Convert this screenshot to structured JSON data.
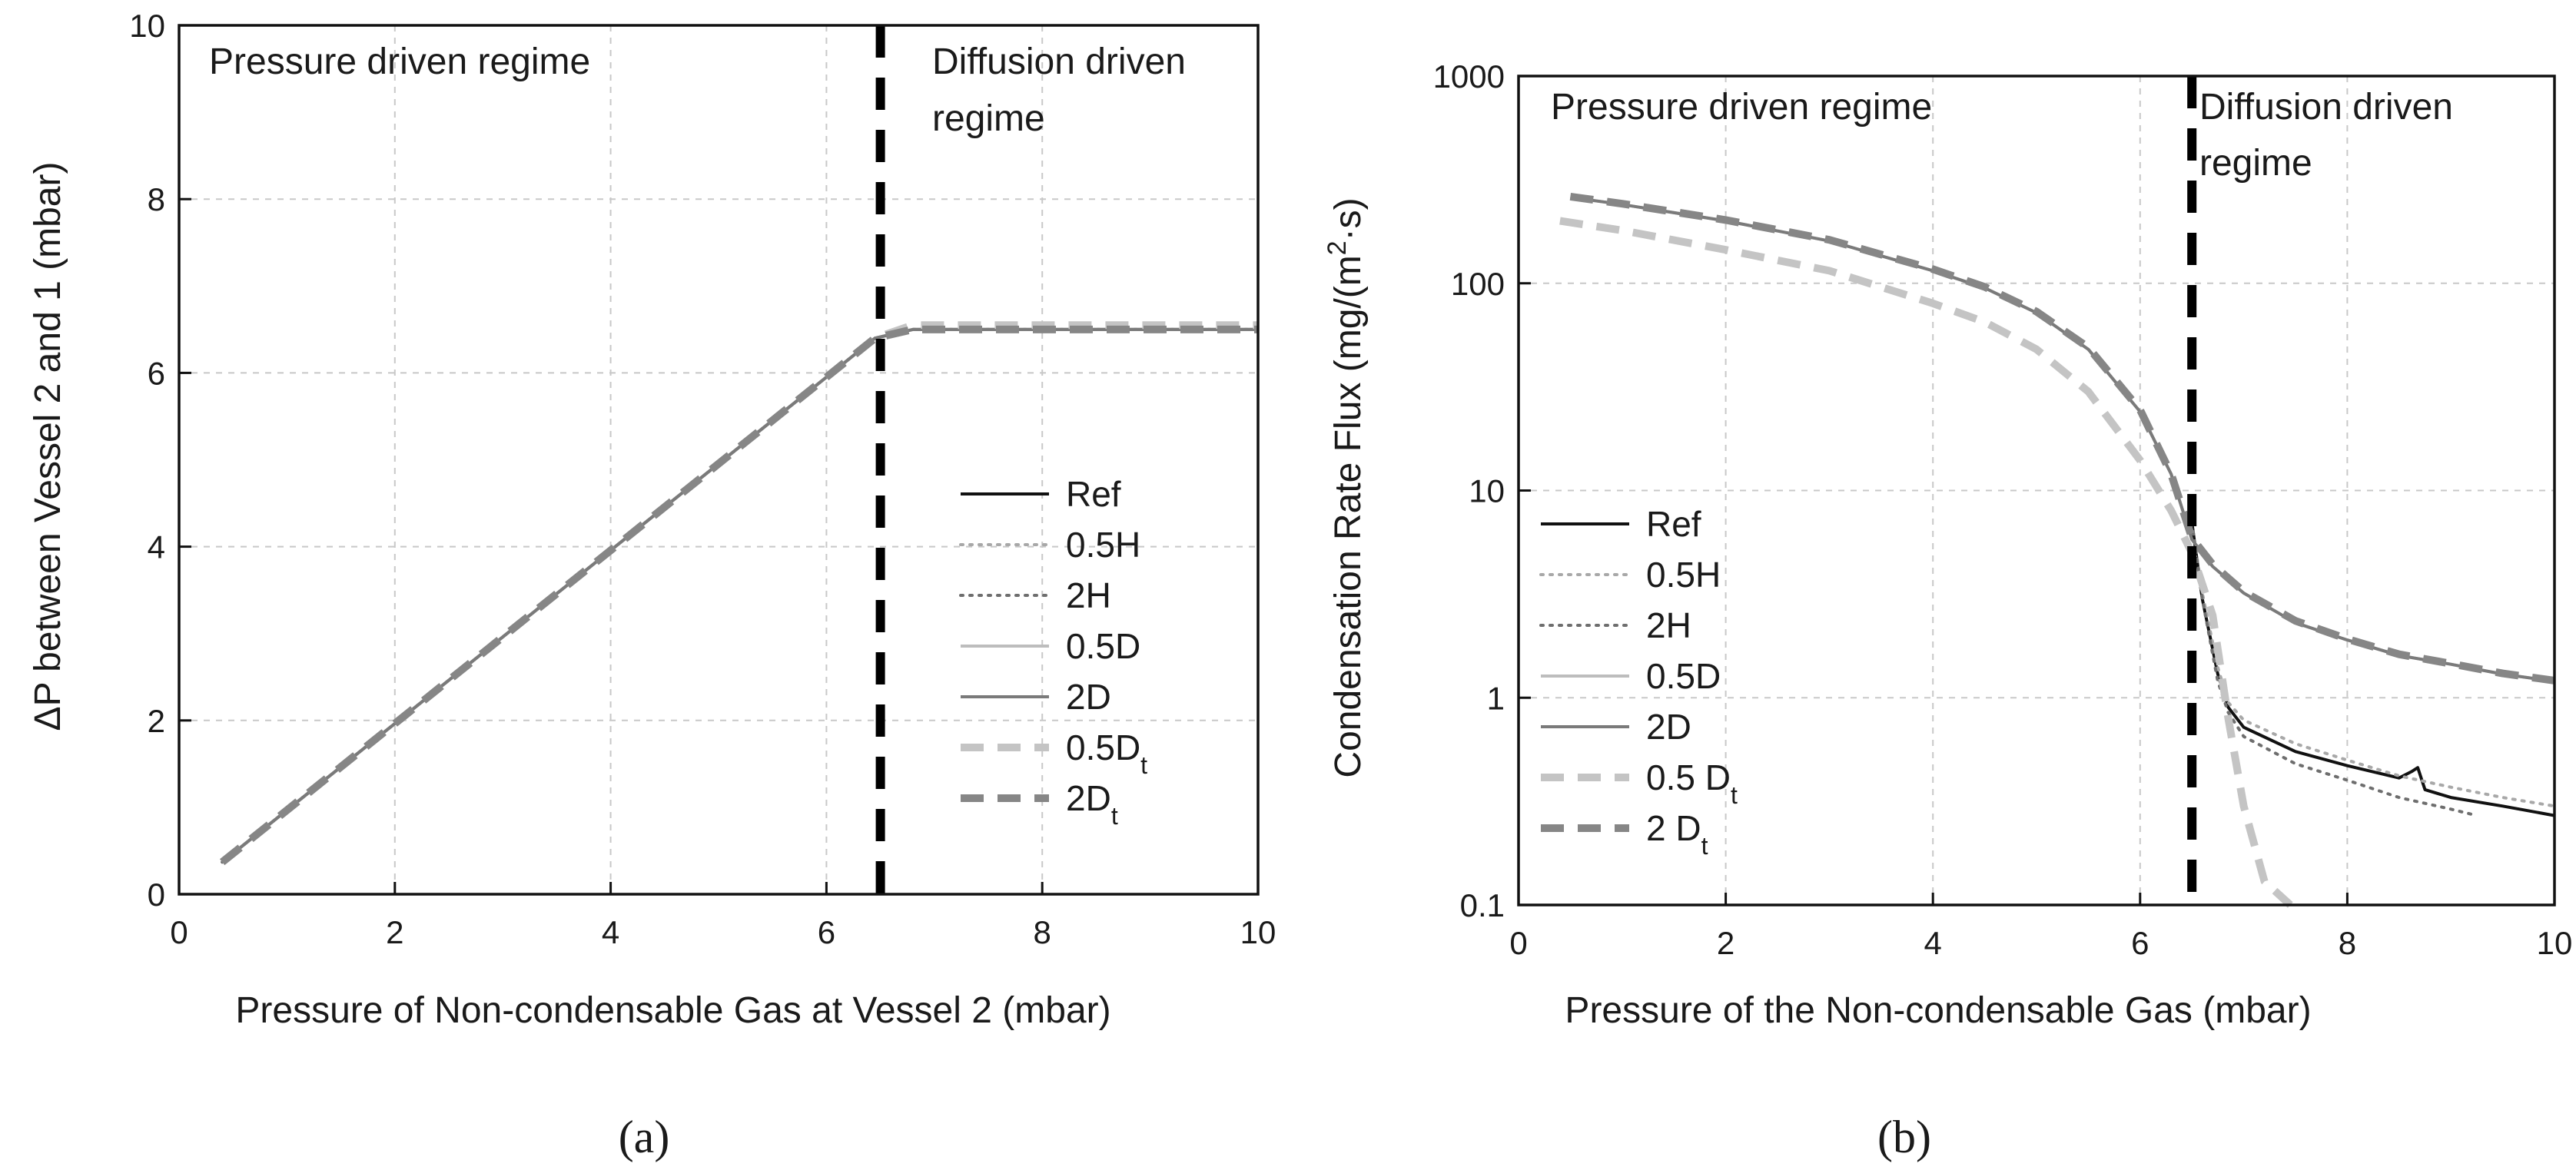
{
  "chart_data": [
    {
      "id": "a",
      "type": "line",
      "caption": "(a)",
      "xlabel": "Pressure of Non-condensable Gas at Vessel 2 (mbar)",
      "ylabel": "ΔP between Vessel 2 and 1 (mbar)",
      "xlim": [
        0,
        10
      ],
      "ylim": [
        0,
        10
      ],
      "yscale": "linear",
      "xticks": [
        0,
        2,
        4,
        6,
        8,
        10
      ],
      "yticks": [
        0,
        2,
        4,
        6,
        8,
        10
      ],
      "grid": true,
      "legend_position": "right-middle",
      "annotations": {
        "left_regime": "Pressure driven regime",
        "right_regime_line1": "Diffusion driven",
        "right_regime_line2": "regime"
      },
      "divider_x": 6.5,
      "series": [
        {
          "name": "Ref",
          "label": "Ref",
          "sub": "",
          "color": "#111111",
          "dash": "solid",
          "width": 4,
          "x": [
            0.4,
            6.45,
            6.8,
            10
          ],
          "y": [
            0.37,
            6.4,
            6.5,
            6.5
          ]
        },
        {
          "name": "0.5H",
          "label": "0.5H",
          "sub": "",
          "color": "#a8a8a8",
          "dash": "dot",
          "width": 4,
          "x": [
            0.4,
            6.45,
            6.8,
            10
          ],
          "y": [
            0.37,
            6.4,
            6.5,
            6.5
          ]
        },
        {
          "name": "2H",
          "label": "2H",
          "sub": "",
          "color": "#6e6e6e",
          "dash": "dot",
          "width": 4,
          "x": [
            0.4,
            6.45,
            6.8,
            10
          ],
          "y": [
            0.37,
            6.4,
            6.5,
            6.5
          ]
        },
        {
          "name": "0.5D",
          "label": "0.5D",
          "sub": "",
          "color": "#bdbdbd",
          "dash": "solid",
          "width": 4,
          "x": [
            0.4,
            6.45,
            6.8,
            10
          ],
          "y": [
            0.37,
            6.4,
            6.5,
            6.5
          ]
        },
        {
          "name": "2D",
          "label": "2D",
          "sub": "",
          "color": "#7a7a7a",
          "dash": "solid",
          "width": 4,
          "x": [
            0.4,
            6.45,
            6.8,
            10
          ],
          "y": [
            0.37,
            6.4,
            6.5,
            6.5
          ]
        },
        {
          "name": "0.5Dt",
          "label": "0.5D",
          "sub": "t",
          "color": "#c4c4c4",
          "dash": "dash",
          "width": 10,
          "x": [
            0.4,
            6.45,
            6.8,
            10
          ],
          "y": [
            0.37,
            6.4,
            6.55,
            6.55
          ]
        },
        {
          "name": "2Dt",
          "label": "2D",
          "sub": "t",
          "color": "#868686",
          "dash": "dash",
          "width": 10,
          "x": [
            0.4,
            6.45,
            6.8,
            10
          ],
          "y": [
            0.37,
            6.4,
            6.5,
            6.5
          ]
        }
      ]
    },
    {
      "id": "b",
      "type": "line",
      "caption": "(b)",
      "xlabel": "Pressure of the Non-condensable Gas (mbar)",
      "ylabel_main": "Condensation Rate Flux (mg/(m",
      "ylabel_sup": "2",
      "ylabel_tail": "·s)",
      "xlim": [
        0,
        10
      ],
      "ylim": [
        0.1,
        1000
      ],
      "yscale": "log",
      "xticks": [
        0,
        2,
        4,
        6,
        8,
        10
      ],
      "yticks": [
        0.1,
        1,
        10,
        100,
        1000
      ],
      "ytick_labels": [
        "0.1",
        "1",
        "10",
        "100",
        "1000"
      ],
      "grid": true,
      "legend_position": "left-bottom",
      "annotations": {
        "left_regime": "Pressure driven regime",
        "right_regime_line1": "Diffusion driven",
        "right_regime_line2": "regime"
      },
      "divider_x": 6.5,
      "series": [
        {
          "name": "Ref",
          "label": "Ref",
          "sub": "",
          "color": "#111111",
          "dash": "solid",
          "width": 4,
          "x": [
            6.5,
            6.6,
            6.75,
            6.85,
            7.0,
            7.5,
            8.0,
            8.5,
            8.62,
            8.68,
            8.75,
            9.0,
            9.5,
            10
          ],
          "y": [
            7.0,
            3.0,
            1.3,
            0.9,
            0.72,
            0.55,
            0.47,
            0.41,
            0.44,
            0.46,
            0.36,
            0.33,
            0.3,
            0.27
          ]
        },
        {
          "name": "0.5H",
          "label": "0.5H",
          "sub": "",
          "color": "#a8a8a8",
          "dash": "dot",
          "width": 4,
          "x": [
            6.5,
            6.6,
            6.75,
            6.85,
            7.0,
            7.5,
            8.0,
            8.5,
            9.0,
            9.5,
            10
          ],
          "y": [
            7.0,
            3.2,
            1.4,
            0.95,
            0.78,
            0.6,
            0.5,
            0.42,
            0.37,
            0.33,
            0.3
          ]
        },
        {
          "name": "2H",
          "label": "2H",
          "sub": "",
          "color": "#6e6e6e",
          "dash": "dot",
          "width": 4,
          "x": [
            6.5,
            6.6,
            6.75,
            6.85,
            7.0,
            7.5,
            8.0,
            8.5,
            9.0,
            9.25
          ],
          "y": [
            7.0,
            3.0,
            1.2,
            0.85,
            0.65,
            0.48,
            0.4,
            0.33,
            0.29,
            0.27
          ]
        },
        {
          "name": "0.5D",
          "label": "0.5D",
          "sub": "",
          "color": "#bdbdbd",
          "dash": "solid",
          "width": 4,
          "x": [
            0.5,
            1,
            2,
            3,
            4,
            4.5,
            5,
            5.5,
            6,
            6.3,
            6.5,
            6.7,
            7,
            7.5,
            8,
            8.5,
            9,
            9.5,
            10
          ],
          "y": [
            260,
            240,
            200,
            160,
            115,
            95,
            72,
            48,
            24,
            12,
            5.8,
            4.3,
            3.2,
            2.3,
            1.9,
            1.6,
            1.45,
            1.3,
            1.2
          ]
        },
        {
          "name": "2D",
          "label": "2D",
          "sub": "",
          "color": "#7a7a7a",
          "dash": "solid",
          "width": 4,
          "x": [
            0.5,
            1,
            2,
            3,
            4,
            4.5,
            5,
            5.5,
            6,
            6.3,
            6.5,
            6.7,
            7,
            7.5,
            8,
            8.5,
            9,
            9.5,
            10
          ],
          "y": [
            260,
            240,
            200,
            160,
            115,
            95,
            72,
            48,
            24,
            12,
            5.8,
            4.3,
            3.2,
            2.3,
            1.9,
            1.6,
            1.45,
            1.3,
            1.2
          ]
        },
        {
          "name": "0.5Dt",
          "label": "0.5 D",
          "sub": "t",
          "color": "#c4c4c4",
          "dash": "dash",
          "width": 10,
          "x": [
            0.4,
            1,
            2,
            3,
            4,
            4.5,
            5,
            5.5,
            6,
            6.3,
            6.5,
            6.7,
            6.85,
            7.0,
            7.2,
            7.45
          ],
          "y": [
            200,
            180,
            145,
            115,
            80,
            65,
            48,
            30,
            14,
            8,
            5,
            2.5,
            0.8,
            0.3,
            0.13,
            0.1
          ]
        },
        {
          "name": "2Dt",
          "label": "2 D",
          "sub": "t",
          "color": "#868686",
          "dash": "dash",
          "width": 10,
          "x": [
            0.5,
            1,
            2,
            3,
            4,
            4.5,
            5,
            5.5,
            6,
            6.3,
            6.5,
            6.7,
            7,
            7.5,
            8,
            8.5,
            9,
            9.5,
            10
          ],
          "y": [
            262,
            242,
            202,
            162,
            117,
            96,
            73,
            49,
            24.5,
            12,
            5.9,
            4.4,
            3.25,
            2.35,
            1.92,
            1.62,
            1.46,
            1.31,
            1.21
          ]
        }
      ]
    }
  ]
}
